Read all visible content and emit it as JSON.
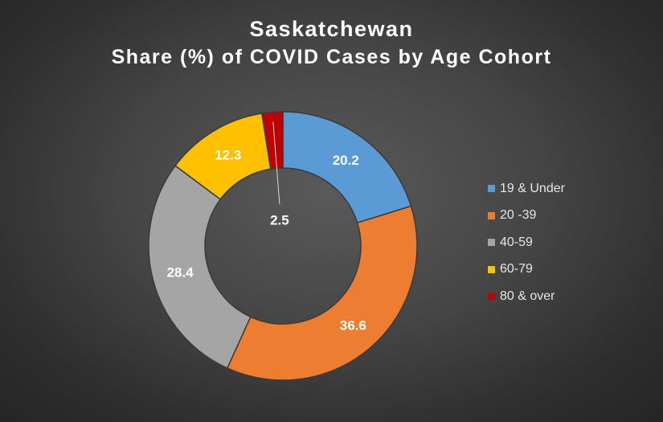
{
  "chart_data": {
    "type": "pie",
    "title": "Saskatchewan",
    "subtitle": "Share (%) of COVID Cases by Age Cohort",
    "donut": true,
    "legend_position": "right",
    "categories": [
      "19 & Under",
      "20 -39",
      "40-59",
      "60-79",
      "80 & over"
    ],
    "values": [
      20.2,
      36.6,
      28.4,
      12.3,
      2.5
    ],
    "labels": [
      "20.2",
      "36.6",
      "28.4",
      "12.3",
      "2.5"
    ],
    "colors": [
      "#5b9bd5",
      "#ed7d31",
      "#a5a5a5",
      "#ffc000",
      "#c00000"
    ]
  }
}
